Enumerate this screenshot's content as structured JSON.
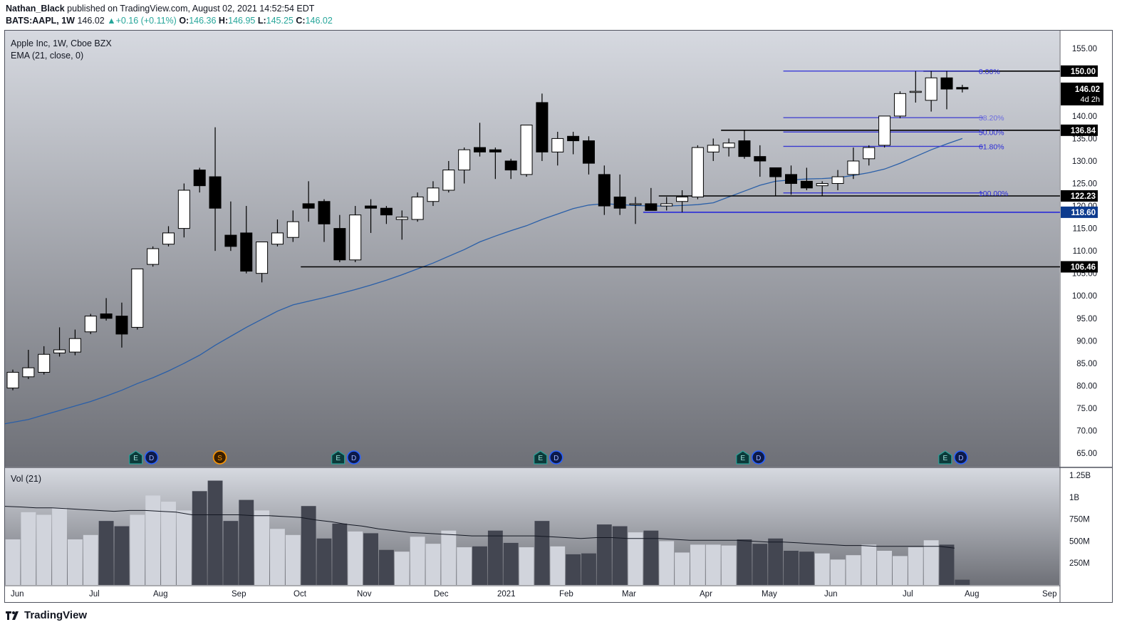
{
  "header": {
    "author": "Nathan_Black",
    "published": "published on TradingView.com, August 02, 2021 14:52:54 EDT",
    "symbol": "BATS:AAPL, 1W",
    "last": "146.02",
    "change": "+0.16 (+0.11%)",
    "o_label": "O:",
    "o": "146.36",
    "h_label": "H:",
    "h": "146.95",
    "l_label": "L:",
    "l": "145.25",
    "c_label": "C:",
    "c": "146.02"
  },
  "legend": {
    "title": "Apple Inc, 1W, Cboe BZX",
    "ema": "EMA (21, close, 0)",
    "vol": "Vol (21)"
  },
  "brand": "TradingView",
  "colors": {
    "up_fill": "#ffffff",
    "down_fill": "#000000",
    "wick": "#000000",
    "ema": "#2962ff",
    "fib": "#2b2bd8",
    "level": "#000000",
    "tag_blue": "#0d3b8e",
    "vol_up": "#d1d4dc",
    "vol_down": "#434651",
    "bg_top": "#d6d9e0",
    "bg_bottom": "#6e7077"
  },
  "chart_data": {
    "type": "candlestick",
    "interval": "1W",
    "ylim": [
      62,
      159
    ],
    "price_ticks": [
      "155.00",
      "150.00",
      "145.00",
      "140.00",
      "135.00",
      "130.00",
      "125.00",
      "120.00",
      "115.00",
      "110.00",
      "105.00",
      "100.00",
      "95.00",
      "90.00",
      "85.00",
      "80.00",
      "75.00",
      "70.00",
      "65.00"
    ],
    "month_labels": [
      "Jun",
      "Jul",
      "Aug",
      "Sep",
      "Oct",
      "Nov",
      "Dec",
      "2021",
      "Feb",
      "Mar",
      "Apr",
      "May",
      "Jun",
      "Jul",
      "Aug",
      "Sep"
    ],
    "candles": [
      {
        "o": 79.5,
        "h": 83.6,
        "l": 79.0,
        "c": 83.0
      },
      {
        "o": 82.0,
        "h": 88.0,
        "l": 81.5,
        "c": 84.0
      },
      {
        "o": 83.0,
        "h": 88.8,
        "l": 82.5,
        "c": 87.0
      },
      {
        "o": 87.3,
        "h": 93.0,
        "l": 86.5,
        "c": 88.0
      },
      {
        "o": 87.5,
        "h": 92.5,
        "l": 86.8,
        "c": 90.5
      },
      {
        "o": 92.0,
        "h": 96.0,
        "l": 91.5,
        "c": 95.5
      },
      {
        "o": 96.0,
        "h": 99.5,
        "l": 94.5,
        "c": 95.0
      },
      {
        "o": 95.5,
        "h": 98.5,
        "l": 88.5,
        "c": 91.5
      },
      {
        "o": 93.0,
        "h": 106.0,
        "l": 92.5,
        "c": 106.0
      },
      {
        "o": 107.0,
        "h": 111.0,
        "l": 106.5,
        "c": 110.5
      },
      {
        "o": 111.5,
        "h": 115.5,
        "l": 111.0,
        "c": 114.0
      },
      {
        "o": 115.0,
        "h": 125.0,
        "l": 113.0,
        "c": 123.5
      },
      {
        "o": 128.0,
        "h": 128.5,
        "l": 123.0,
        "c": 124.5
      },
      {
        "o": 126.5,
        "h": 137.5,
        "l": 110.0,
        "c": 119.5
      },
      {
        "o": 113.5,
        "h": 121.0,
        "l": 110.0,
        "c": 111.0
      },
      {
        "o": 114.0,
        "h": 120.0,
        "l": 105.0,
        "c": 105.5
      },
      {
        "o": 105.0,
        "h": 112.0,
        "l": 103.0,
        "c": 112.0
      },
      {
        "o": 111.5,
        "h": 117.0,
        "l": 111.0,
        "c": 114.0
      },
      {
        "o": 113.0,
        "h": 119.0,
        "l": 112.0,
        "c": 116.5
      },
      {
        "o": 120.5,
        "h": 125.5,
        "l": 116.5,
        "c": 119.5
      },
      {
        "o": 121.0,
        "h": 121.5,
        "l": 112.0,
        "c": 116.0
      },
      {
        "o": 115.0,
        "h": 118.0,
        "l": 107.5,
        "c": 108.0
      },
      {
        "o": 108.0,
        "h": 120.0,
        "l": 107.5,
        "c": 118.0
      },
      {
        "o": 120.0,
        "h": 121.5,
        "l": 114.0,
        "c": 119.5
      },
      {
        "o": 119.5,
        "h": 120.0,
        "l": 116.0,
        "c": 118.0
      },
      {
        "o": 117.0,
        "h": 119.0,
        "l": 112.5,
        "c": 117.5
      },
      {
        "o": 117.0,
        "h": 123.0,
        "l": 116.5,
        "c": 122.0
      },
      {
        "o": 121.0,
        "h": 125.5,
        "l": 120.0,
        "c": 124.0
      },
      {
        "o": 123.5,
        "h": 130.0,
        "l": 123.0,
        "c": 128.0
      },
      {
        "o": 128.0,
        "h": 133.0,
        "l": 125.0,
        "c": 132.5
      },
      {
        "o": 133.0,
        "h": 138.5,
        "l": 131.0,
        "c": 132.0
      },
      {
        "o": 132.5,
        "h": 133.0,
        "l": 126.0,
        "c": 132.0
      },
      {
        "o": 130.0,
        "h": 130.5,
        "l": 126.0,
        "c": 128.0
      },
      {
        "o": 127.0,
        "h": 138.0,
        "l": 126.5,
        "c": 138.0
      },
      {
        "o": 143.0,
        "h": 145.0,
        "l": 130.0,
        "c": 132.0
      },
      {
        "o": 132.0,
        "h": 136.5,
        "l": 129.0,
        "c": 135.0
      },
      {
        "o": 135.5,
        "h": 136.5,
        "l": 131.5,
        "c": 134.5
      },
      {
        "o": 134.5,
        "h": 135.5,
        "l": 127.0,
        "c": 129.5
      },
      {
        "o": 127.0,
        "h": 129.0,
        "l": 118.0,
        "c": 120.0
      },
      {
        "o": 122.0,
        "h": 127.0,
        "l": 118.0,
        "c": 119.5
      },
      {
        "o": 120.5,
        "h": 122.0,
        "l": 116.0,
        "c": 120.5
      },
      {
        "o": 120.5,
        "h": 124.0,
        "l": 119.0,
        "c": 119.0
      },
      {
        "o": 120.0,
        "h": 122.0,
        "l": 119.0,
        "c": 120.5
      },
      {
        "o": 121.0,
        "h": 123.5,
        "l": 118.6,
        "c": 122.0
      },
      {
        "o": 122.0,
        "h": 133.5,
        "l": 121.5,
        "c": 133.0
      },
      {
        "o": 132.0,
        "h": 135.0,
        "l": 130.0,
        "c": 133.5
      },
      {
        "o": 133.0,
        "h": 135.0,
        "l": 131.0,
        "c": 134.0
      },
      {
        "o": 134.5,
        "h": 136.84,
        "l": 130.5,
        "c": 131.0
      },
      {
        "o": 131.0,
        "h": 133.5,
        "l": 126.5,
        "c": 130.0
      },
      {
        "o": 128.5,
        "h": 128.5,
        "l": 122.25,
        "c": 126.5
      },
      {
        "o": 127.0,
        "h": 129.0,
        "l": 122.5,
        "c": 125.0
      },
      {
        "o": 125.5,
        "h": 128.5,
        "l": 123.5,
        "c": 124.0
      },
      {
        "o": 124.5,
        "h": 125.5,
        "l": 122.23,
        "c": 125.0
      },
      {
        "o": 125.0,
        "h": 128.0,
        "l": 123.5,
        "c": 126.5
      },
      {
        "o": 127.0,
        "h": 133.0,
        "l": 126.0,
        "c": 130.0
      },
      {
        "o": 130.5,
        "h": 133.5,
        "l": 129.0,
        "c": 133.0
      },
      {
        "o": 133.5,
        "h": 140.0,
        "l": 133.0,
        "c": 140.0
      },
      {
        "o": 140.0,
        "h": 145.5,
        "l": 139.5,
        "c": 145.0
      },
      {
        "o": 145.5,
        "h": 150.0,
        "l": 143.0,
        "c": 145.5
      },
      {
        "o": 143.5,
        "h": 150.0,
        "l": 141.0,
        "c": 148.5
      },
      {
        "o": 148.5,
        "h": 150.0,
        "l": 141.5,
        "c": 146.0
      },
      {
        "o": 146.36,
        "h": 146.95,
        "l": 145.25,
        "c": 146.02
      }
    ],
    "ema": [
      71.5,
      72.5,
      73.5,
      74.5,
      75.5,
      76.5,
      77.7,
      79.0,
      80.5,
      81.8,
      83.3,
      85.0,
      86.8,
      89.0,
      91.0,
      93.0,
      94.8,
      96.6,
      98.0,
      98.8,
      99.6,
      100.5,
      101.4,
      102.4,
      103.5,
      104.7,
      106.0,
      107.3,
      108.8,
      110.3,
      112.0,
      113.3,
      114.5,
      115.6,
      117.0,
      118.2,
      119.4,
      120.2,
      120.5,
      120.3,
      120.1,
      120.0,
      120.0,
      120.1,
      120.3,
      120.7,
      122.0,
      123.3,
      124.6,
      125.5,
      125.8,
      126.0,
      126.1,
      126.3,
      126.8,
      127.4,
      128.2,
      129.5,
      131.0,
      132.5,
      133.8,
      135.0
    ],
    "levels": [
      {
        "price": 150.0,
        "label": "150.00",
        "tag": "black",
        "from_bar": 58.5
      },
      {
        "price": 136.84,
        "label": "136.84",
        "tag": "black",
        "from_bar": 45.5
      },
      {
        "price": 122.23,
        "label": "122.23",
        "tag": "black",
        "from_bar": 41.5
      },
      {
        "price": 118.6,
        "label": "118.60",
        "tag": "blue",
        "from_bar": 40.5
      },
      {
        "price": 106.46,
        "label": "106.46",
        "tag": "black",
        "from_bar": 18.5
      }
    ],
    "last_price": {
      "label": "146.02",
      "countdown": "4d 2h"
    },
    "fibonacci": {
      "from_bar": 49.5,
      "to_bar": 60.5,
      "high": 150.0,
      "low": 122.9,
      "levels": [
        {
          "ratio": 0.0,
          "label": "0.00%"
        },
        {
          "ratio": 0.382,
          "label": "38.20%"
        },
        {
          "ratio": 0.5,
          "label": "50.00%"
        },
        {
          "ratio": 0.618,
          "label": "61.80%"
        },
        {
          "ratio": 1.0,
          "label": "100.00%"
        }
      ]
    },
    "events": [
      {
        "bar": 7.9,
        "marks": [
          "E",
          "D"
        ]
      },
      {
        "bar": 13.3,
        "marks": [
          "S"
        ]
      },
      {
        "bar": 20.9,
        "marks": [
          "E",
          "D"
        ]
      },
      {
        "bar": 33.9,
        "marks": [
          "E",
          "D"
        ]
      },
      {
        "bar": 46.9,
        "marks": [
          "E",
          "D"
        ]
      },
      {
        "bar": 59.9,
        "marks": [
          "E",
          "D"
        ]
      }
    ],
    "volume": {
      "ylim": [
        0,
        1.3
      ],
      "ticks": [
        "1.25B",
        "1B",
        "750M",
        "500M",
        "250M"
      ],
      "values": [
        0.52,
        0.83,
        0.8,
        0.88,
        0.52,
        0.57,
        0.73,
        0.67,
        0.8,
        1.02,
        0.95,
        0.85,
        1.07,
        1.19,
        0.73,
        0.97,
        0.85,
        0.64,
        0.57,
        0.9,
        0.53,
        0.7,
        0.61,
        0.59,
        0.4,
        0.38,
        0.55,
        0.47,
        0.62,
        0.43,
        0.44,
        0.62,
        0.48,
        0.43,
        0.73,
        0.44,
        0.35,
        0.36,
        0.69,
        0.67,
        0.6,
        0.62,
        0.5,
        0.37,
        0.46,
        0.46,
        0.45,
        0.52,
        0.47,
        0.53,
        0.39,
        0.38,
        0.36,
        0.29,
        0.34,
        0.46,
        0.39,
        0.33,
        0.43,
        0.51,
        0.46,
        0.06
      ],
      "ma": [
        0.9,
        0.89,
        0.88,
        0.88,
        0.87,
        0.86,
        0.85,
        0.84,
        0.85,
        0.85,
        0.84,
        0.83,
        0.8,
        0.8,
        0.8,
        0.8,
        0.79,
        0.79,
        0.78,
        0.77,
        0.74,
        0.72,
        0.69,
        0.67,
        0.64,
        0.62,
        0.6,
        0.59,
        0.58,
        0.57,
        0.56,
        0.56,
        0.56,
        0.56,
        0.56,
        0.55,
        0.54,
        0.53,
        0.54,
        0.54,
        0.53,
        0.53,
        0.53,
        0.52,
        0.51,
        0.51,
        0.51,
        0.51,
        0.5,
        0.49,
        0.49,
        0.48,
        0.47,
        0.46,
        0.45,
        0.45,
        0.44,
        0.44,
        0.44,
        0.44,
        0.44,
        0.42
      ]
    }
  }
}
